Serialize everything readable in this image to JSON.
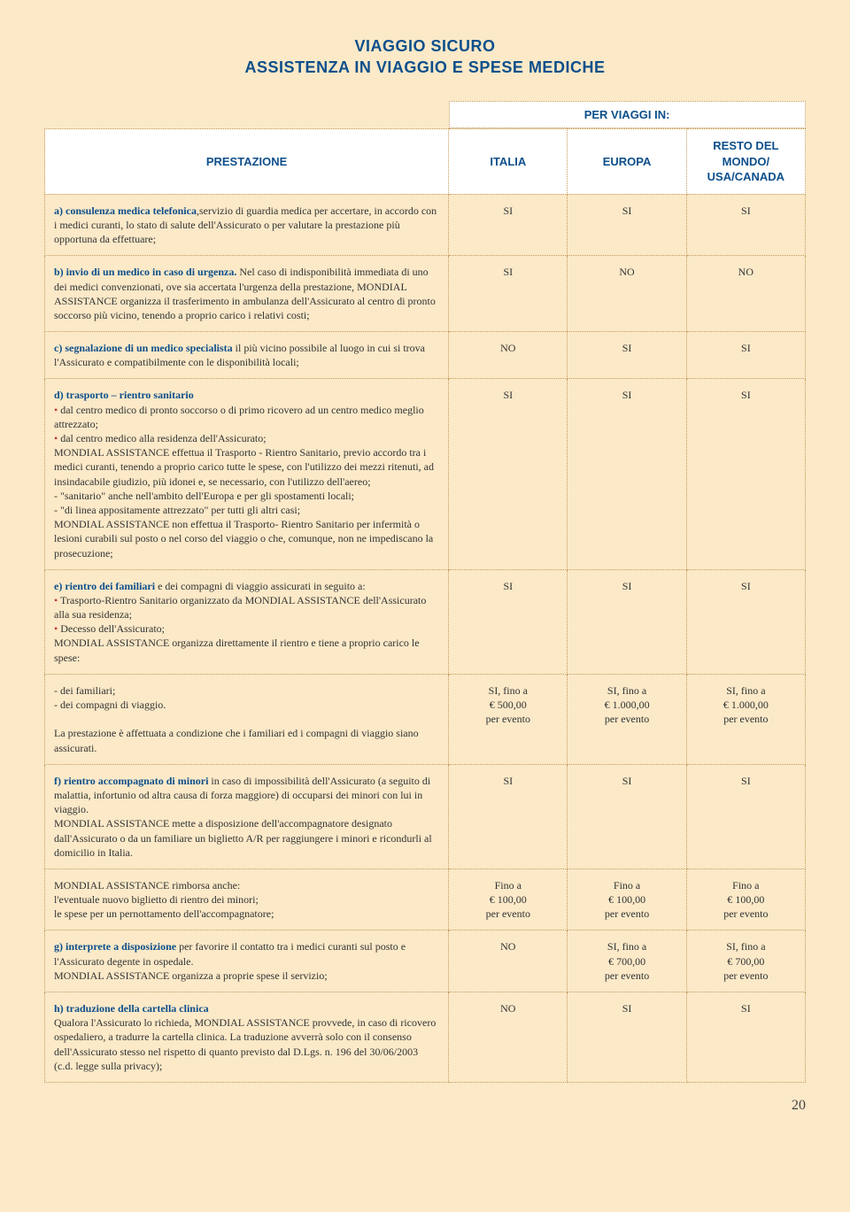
{
  "title_line1": "VIAGGIO SICURO",
  "title_line2": "ASSISTENZA IN VIAGGIO E SPESE MEDICHE",
  "header": {
    "super": "PER VIAGGI IN:",
    "col0": "PRESTAZIONE",
    "col1": "ITALIA",
    "col2": "EUROPA",
    "col3": "RESTO DEL MONDO/ USA/CANADA"
  },
  "rows": [
    {
      "desc": "<span class='lead'>a) consulenza medica telefonica</span>,servizio di guardia medica per accertare, in accordo con i medici curanti, lo stato di salute dell'Assicurato o per valutare la prestazione più opportuna da effettuare;",
      "c1": "SI",
      "c2": "SI",
      "c3": "SI"
    },
    {
      "desc": "<span class='lead'>b) invio di un medico in caso di urgenza.</span> Nel caso di indisponibilità immediata di uno dei medici convenzionati, ove sia accertata l'urgenza della prestazione, MONDIAL ASSISTANCE organizza il trasferimento in ambulanza dell'Assicurato al centro di pronto soccorso più vicino, tenendo a proprio carico i relativi costi;",
      "c1": "SI",
      "c2": "NO",
      "c3": "NO"
    },
    {
      "desc": "<span class='lead'>c) segnalazione di un medico specialista</span> il più vicino possibile al luogo in cui si trova l'Assicurato e compatibilmente con le disponibilità locali;",
      "c1": "NO",
      "c2": "SI",
      "c3": "SI"
    },
    {
      "desc": "<span class='lead'>d) trasporto – rientro sanitario</span><br><span class='bullet'>•</span> dal centro medico di pronto soccorso o di primo ricovero ad un centro medico meglio attrezzato;<br><span class='bullet'>•</span> dal centro medico alla residenza dell'Assicurato;<br>MONDIAL ASSISTANCE effettua il Trasporto - Rientro Sanitario, previo accordo tra i medici curanti, tenendo a proprio carico tutte le spese, con l'utilizzo dei mezzi ritenuti, ad insindacabile giudizio, più idonei e, se necessario, con l'utilizzo dell'aereo;<br>- \"sanitario\" anche nell'ambito dell'Europa e per gli spostamenti locali;<br>- \"di linea appositamente attrezzato\" per tutti gli altri casi;<br>MONDIAL ASSISTANCE non effettua il Trasporto- Rientro Sanitario per infermità o lesioni curabili sul posto o nel corso del viaggio o che, comunque, non ne impediscano la prosecuzione;",
      "c1": "SI",
      "c2": "SI",
      "c3": "SI"
    },
    {
      "desc": "<span class='lead'>e) rientro dei familiari</span> e dei compagni di viaggio assicurati in seguito a:<br><span class='bullet'>•</span> Trasporto-Rientro Sanitario organizzato da MONDIAL ASSISTANCE dell'Assicurato alla sua residenza;<br><span class='bullet'>•</span> Decesso dell'Assicurato;<br>MONDIAL ASSISTANCE organizza direttamente il rientro e tiene a proprio carico le spese:",
      "c1": "SI",
      "c2": "SI",
      "c3": "SI"
    },
    {
      "desc": "- dei familiari;<br>- dei compagni di viaggio.<br><br>La prestazione è affettuata a condizione che i familiari ed i compagni di viaggio siano assicurati.",
      "c1": "SI, fino a\n€ 500,00\nper evento",
      "c2": "SI, fino a\n€ 1.000,00\nper evento",
      "c3": "SI, fino a\n€ 1.000,00\nper evento"
    },
    {
      "desc": "<span class='lead'>f) rientro accompagnato di minori</span> in caso di impossibilità dell'Assicurato (a seguito di malattia, infortunio od altra causa di forza maggiore) di occuparsi dei minori con lui in viaggio.<br>MONDIAL ASSISTANCE mette a disposizione dell'accompagnatore designato dall'Assicurato o da un familiare un biglietto A/R per raggiungere i minori e ricondurli al domicilio in Italia.",
      "c1": "SI",
      "c2": "SI",
      "c3": "SI"
    },
    {
      "desc": "MONDIAL ASSISTANCE rimborsa anche:<br>l'eventuale nuovo biglietto di rientro dei minori;<br>le spese per un pernottamento dell'accompagnatore;",
      "c1": "Fino a\n€ 100,00\nper evento",
      "c2": "Fino a\n€ 100,00\nper evento",
      "c3": "Fino a\n€ 100,00\nper evento"
    },
    {
      "desc": "<span class='lead'>g) interprete a disposizione</span> per favorire il contatto tra i medici curanti sul posto e l'Assicurato degente in ospedale.<br>MONDIAL ASSISTANCE organizza a proprie spese il servizio;",
      "c1": "NO",
      "c2": "SI, fino a\n€ 700,00\nper evento",
      "c3": "SI, fino a\n€ 700,00\nper evento"
    },
    {
      "desc": "<span class='lead'>h) traduzione della cartella clinica</span><br>Qualora l'Assicurato lo richieda, MONDIAL ASSISTANCE provvede, in caso di ricovero ospedaliero, a tradurre la cartella clinica. La traduzione avverrà solo con il consenso dell'Assicurato stesso nel rispetto di quanto previsto dal D.Lgs. n. 196 del 30/06/2003 (c.d. legge sulla privacy);",
      "c1": "NO",
      "c2": "SI",
      "c3": "SI"
    }
  ],
  "page_number": "20"
}
